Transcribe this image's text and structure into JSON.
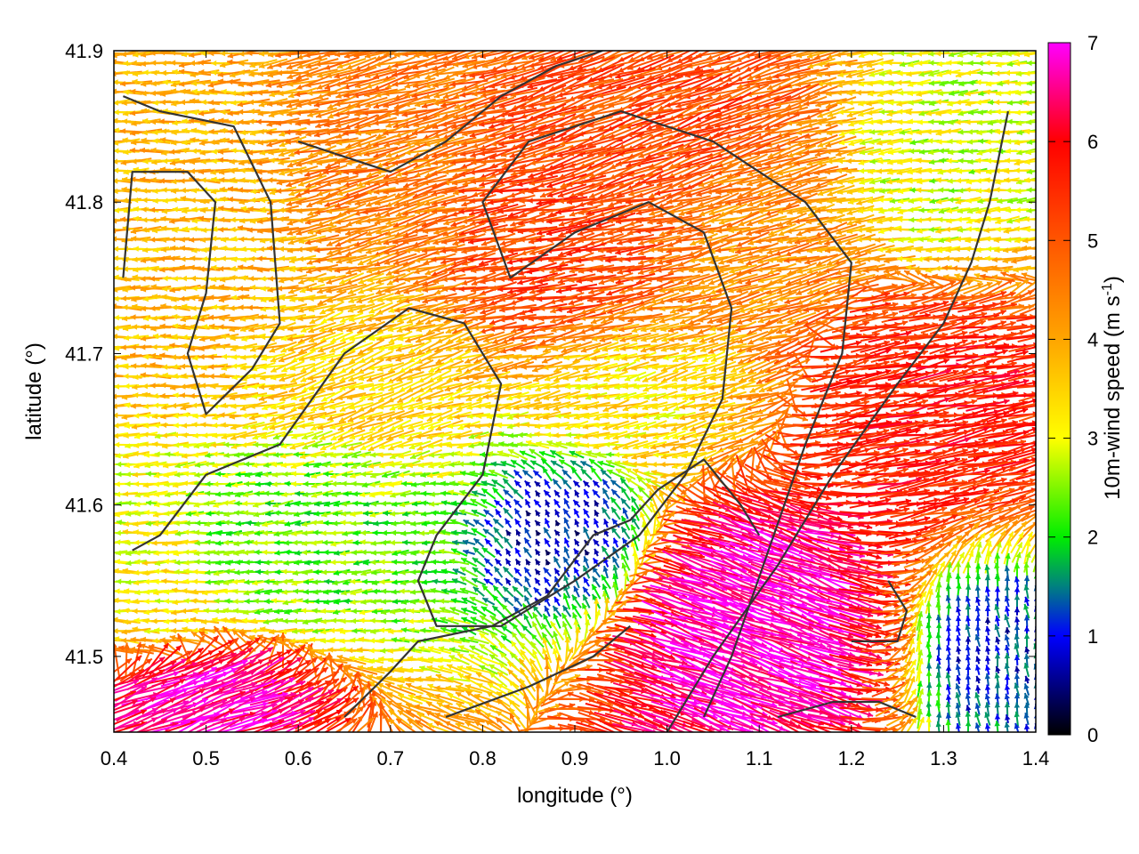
{
  "chart_data": {
    "type": "quiver",
    "xlabel": "longitude (°)",
    "ylabel": "latitude (°)",
    "xlim": [
      0.4,
      1.4
    ],
    "ylim": [
      41.45,
      41.9
    ],
    "xticks": [
      0.4,
      0.5,
      0.6,
      0.7,
      0.8,
      0.9,
      1.0,
      1.1,
      1.2,
      1.3,
      1.4
    ],
    "xtick_labels": [
      "0.4",
      "0.5",
      "0.6",
      "0.7",
      "0.8",
      "0.9",
      "1.0",
      "1.1",
      "1.2",
      "1.3",
      "1.4"
    ],
    "yticks": [
      41.5,
      41.6,
      41.7,
      41.8,
      41.9
    ],
    "ytick_labels": [
      "41.5",
      "41.6",
      "41.7",
      "41.8",
      "41.9"
    ],
    "colorbar": {
      "label_main": "10m-wind speed (m s",
      "label_sup": "-1",
      "label_close": ")",
      "range": [
        0,
        7
      ],
      "ticks": [
        0,
        1,
        2,
        3,
        4,
        5,
        6,
        7
      ],
      "tick_labels": [
        "0",
        "1",
        "2",
        "3",
        "4",
        "5",
        "6",
        "7"
      ],
      "colormap": [
        [
          0,
          "#000000"
        ],
        [
          1,
          "#0000ff"
        ],
        [
          1.5,
          "#008080"
        ],
        [
          2,
          "#00ee00"
        ],
        [
          3,
          "#ffff00"
        ],
        [
          4,
          "#ffa500"
        ],
        [
          5,
          "#ff5500"
        ],
        [
          6,
          "#ff0000"
        ],
        [
          7,
          "#ff00ff"
        ]
      ]
    },
    "wind_regions": [
      {
        "lon": [
          0.4,
          0.6
        ],
        "lat": [
          41.65,
          41.88
        ],
        "speed": 3.8,
        "dir_deg": 180
      },
      {
        "lon": [
          0.6,
          0.78
        ],
        "lat": [
          41.75,
          41.9
        ],
        "speed": 4.5,
        "dir_deg": 195
      },
      {
        "lon": [
          0.75,
          1.0
        ],
        "lat": [
          41.7,
          41.83
        ],
        "speed": 5.3,
        "dir_deg": 190
      },
      {
        "lon": [
          0.85,
          1.15
        ],
        "lat": [
          41.8,
          41.9
        ],
        "speed": 5.2,
        "dir_deg": 200
      },
      {
        "lon": [
          1.0,
          1.2
        ],
        "lat": [
          41.7,
          41.85
        ],
        "speed": 4.3,
        "dir_deg": 195
      },
      {
        "lon": [
          0.55,
          0.8
        ],
        "lat": [
          41.62,
          41.75
        ],
        "speed": 3.5,
        "dir_deg": 200
      },
      {
        "lon": [
          0.45,
          0.78
        ],
        "lat": [
          41.52,
          41.65
        ],
        "speed": 2.3,
        "dir_deg": 185
      },
      {
        "lon": [
          0.8,
          0.98
        ],
        "lat": [
          41.53,
          41.63
        ],
        "speed": 0.7,
        "dir_deg": 120
      },
      {
        "lon": [
          0.85,
          1.1
        ],
        "lat": [
          41.63,
          41.72
        ],
        "speed": 3.3,
        "dir_deg": 195
      },
      {
        "lon": [
          0.95,
          1.2
        ],
        "lat": [
          41.46,
          41.6
        ],
        "speed": 6.9,
        "dir_deg": 340
      },
      {
        "lon": [
          1.15,
          1.4
        ],
        "lat": [
          41.6,
          41.75
        ],
        "speed": 5.8,
        "dir_deg": 10
      },
      {
        "lon": [
          1.2,
          1.4
        ],
        "lat": [
          41.75,
          41.9
        ],
        "speed": 2.8,
        "dir_deg": 185
      },
      {
        "lon": [
          1.3,
          1.4
        ],
        "lat": [
          41.46,
          41.55
        ],
        "speed": 1.0,
        "dir_deg": 100
      },
      {
        "lon": [
          0.4,
          0.6
        ],
        "lat": [
          41.45,
          41.5
        ],
        "speed": 6.8,
        "dir_deg": 20
      },
      {
        "lon": [
          0.4,
          0.5
        ],
        "lat": [
          41.5,
          41.6
        ],
        "speed": 3.2,
        "dir_deg": 180
      }
    ],
    "terrain_contours": [
      [
        [
          0.41,
          41.75
        ],
        [
          0.42,
          41.82
        ],
        [
          0.48,
          41.82
        ],
        [
          0.51,
          41.8
        ],
        [
          0.5,
          41.74
        ],
        [
          0.48,
          41.7
        ],
        [
          0.5,
          41.66
        ],
        [
          0.55,
          41.69
        ],
        [
          0.58,
          41.72
        ],
        [
          0.57,
          41.8
        ],
        [
          0.53,
          41.85
        ],
        [
          0.45,
          41.86
        ],
        [
          0.41,
          41.87
        ]
      ],
      [
        [
          0.42,
          41.57
        ],
        [
          0.45,
          41.58
        ],
        [
          0.5,
          41.62
        ],
        [
          0.58,
          41.64
        ],
        [
          0.65,
          41.7
        ],
        [
          0.72,
          41.73
        ],
        [
          0.78,
          41.72
        ],
        [
          0.82,
          41.68
        ],
        [
          0.8,
          41.62
        ],
        [
          0.75,
          41.58
        ],
        [
          0.73,
          41.55
        ],
        [
          0.75,
          41.52
        ],
        [
          0.82,
          41.52
        ],
        [
          0.9,
          41.55
        ],
        [
          0.97,
          41.58
        ],
        [
          1.02,
          41.62
        ],
        [
          1.06,
          41.67
        ],
        [
          1.07,
          41.73
        ],
        [
          1.04,
          41.78
        ],
        [
          0.98,
          41.8
        ],
        [
          0.9,
          41.78
        ],
        [
          0.83,
          41.75
        ],
        [
          0.8,
          41.8
        ],
        [
          0.85,
          41.84
        ],
        [
          0.95,
          41.86
        ],
        [
          1.05,
          41.84
        ],
        [
          1.15,
          41.8
        ],
        [
          1.2,
          41.76
        ],
        [
          1.19,
          41.7
        ],
        [
          1.15,
          41.64
        ],
        [
          1.11,
          41.57
        ],
        [
          1.07,
          41.5
        ],
        [
          1.04,
          41.46
        ]
      ],
      [
        [
          0.65,
          41.46
        ],
        [
          0.7,
          41.49
        ],
        [
          0.73,
          41.51
        ],
        [
          0.81,
          41.52
        ],
        [
          0.87,
          41.54
        ],
        [
          0.92,
          41.58
        ],
        [
          0.96,
          41.59
        ],
        [
          0.99,
          41.61
        ],
        [
          1.04,
          41.63
        ],
        [
          1.08,
          41.6
        ],
        [
          1.1,
          41.58
        ]
      ],
      [
        [
          0.6,
          41.84
        ],
        [
          0.7,
          41.82
        ],
        [
          0.76,
          41.84
        ],
        [
          0.82,
          41.87
        ],
        [
          0.88,
          41.89
        ],
        [
          0.93,
          41.9
        ]
      ],
      [
        [
          1.0,
          41.45
        ],
        [
          1.05,
          41.5
        ],
        [
          1.12,
          41.56
        ],
        [
          1.18,
          41.62
        ],
        [
          1.25,
          41.68
        ],
        [
          1.3,
          41.72
        ],
        [
          1.33,
          41.76
        ],
        [
          1.35,
          41.8
        ],
        [
          1.37,
          41.86
        ]
      ],
      [
        [
          0.76,
          41.46
        ],
        [
          0.85,
          41.48
        ],
        [
          0.92,
          41.5
        ],
        [
          0.96,
          41.52
        ]
      ],
      [
        [
          1.12,
          41.46
        ],
        [
          1.18,
          41.47
        ],
        [
          1.23,
          41.47
        ],
        [
          1.27,
          41.46
        ]
      ],
      [
        [
          1.2,
          41.51
        ],
        [
          1.25,
          41.51
        ],
        [
          1.26,
          41.53
        ],
        [
          1.24,
          41.55
        ]
      ]
    ]
  }
}
